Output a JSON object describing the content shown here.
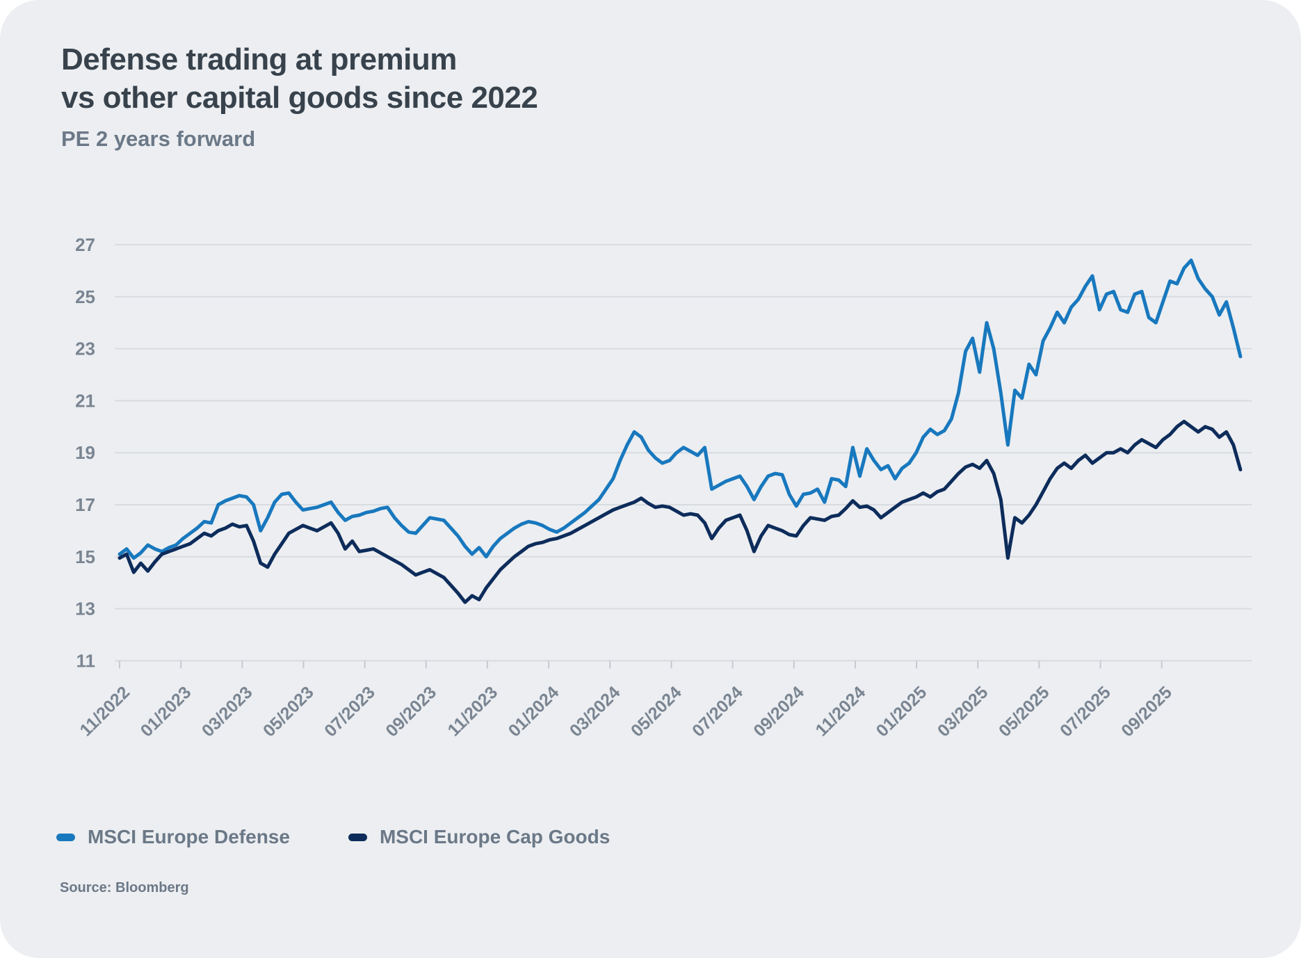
{
  "card": {
    "title_line1": "Defense trading at premium",
    "title_line2": "vs other capital goods since 2022",
    "subtitle": "PE 2 years forward",
    "source": "Source: Bloomberg"
  },
  "colors": {
    "background": "#ECEEF1",
    "gridline": "#D8DBDF",
    "axis_tick": "#C5CAD1",
    "axis_label": "#7A8592",
    "title": "#37424C",
    "muted_text": "#6B7887",
    "defense_line": "#1878BE",
    "cap_goods_line": "#0D2C5B"
  },
  "legend": {
    "items": [
      {
        "label": "MSCI Europe Defense"
      },
      {
        "label": "MSCI Europe Cap Goods"
      }
    ]
  },
  "chart_data": {
    "type": "line",
    "title": "Defense trading at premium vs other capital goods since 2022",
    "subtitle": "PE 2 years forward",
    "xlabel": "",
    "ylabel": "PE 2 years forward",
    "ylim": [
      11,
      27
    ],
    "y_ticks": [
      27,
      25,
      23,
      21,
      19,
      17,
      15,
      13,
      11
    ],
    "x_tick_labels": [
      "11/2022",
      "01/2023",
      "03/2023",
      "05/2023",
      "07/2023",
      "09/2023",
      "11/2023",
      "01/2024",
      "03/2024",
      "05/2024",
      "07/2024",
      "09/2024",
      "11/2024",
      "01/2025",
      "03/2025",
      "05/2025",
      "07/2025",
      "09/2025"
    ],
    "x_sampling": "weekly points from 11/2022 to 11/2025, evenly spaced",
    "grid": "horizontal only",
    "legend_position": "bottom-left",
    "series": [
      {
        "name": "MSCI Europe Defense",
        "color": "#1878BE",
        "values": [
          15.1,
          15.3,
          14.95,
          15.15,
          15.45,
          15.3,
          15.2,
          15.35,
          15.45,
          15.7,
          15.9,
          16.1,
          16.35,
          16.3,
          17.0,
          17.15,
          17.25,
          17.35,
          17.3,
          17.0,
          16.0,
          16.5,
          17.1,
          17.4,
          17.45,
          17.1,
          16.8,
          16.85,
          16.9,
          17.0,
          17.1,
          16.7,
          16.4,
          16.55,
          16.6,
          16.7,
          16.75,
          16.85,
          16.9,
          16.5,
          16.2,
          15.95,
          15.9,
          16.2,
          16.5,
          16.45,
          16.4,
          16.1,
          15.8,
          15.4,
          15.1,
          15.35,
          15.0,
          15.4,
          15.7,
          15.9,
          16.1,
          16.25,
          16.35,
          16.3,
          16.2,
          16.05,
          15.95,
          16.1,
          16.3,
          16.5,
          16.7,
          16.95,
          17.2,
          17.6,
          18.0,
          18.7,
          19.3,
          19.8,
          19.6,
          19.1,
          18.8,
          18.6,
          18.7,
          19.0,
          19.2,
          19.05,
          18.9,
          19.2,
          17.6,
          17.75,
          17.9,
          18.0,
          18.1,
          17.7,
          17.2,
          17.7,
          18.1,
          18.2,
          18.15,
          17.4,
          16.95,
          17.4,
          17.45,
          17.6,
          17.1,
          18.0,
          17.95,
          17.7,
          19.2,
          18.1,
          19.15,
          18.7,
          18.35,
          18.5,
          18.0,
          18.4,
          18.6,
          19.0,
          19.6,
          19.9,
          19.7,
          19.85,
          20.3,
          21.3,
          22.9,
          23.4,
          22.1,
          24.0,
          23.0,
          21.3,
          19.3,
          21.4,
          21.1,
          22.4,
          22.0,
          23.3,
          23.8,
          24.4,
          24.0,
          24.6,
          24.9,
          25.4,
          25.8,
          24.5,
          25.1,
          25.2,
          24.5,
          24.4,
          25.1,
          25.2,
          24.2,
          24.0,
          24.8,
          25.6,
          25.5,
          26.1,
          26.4,
          25.7,
          25.3,
          25.0,
          24.3,
          24.8,
          23.8,
          22.7
        ]
      },
      {
        "name": "MSCI Europe Cap Goods",
        "color": "#0D2C5B",
        "values": [
          14.95,
          15.1,
          14.4,
          14.75,
          14.45,
          14.8,
          15.1,
          15.2,
          15.3,
          15.4,
          15.5,
          15.7,
          15.9,
          15.8,
          16.0,
          16.1,
          16.25,
          16.15,
          16.2,
          15.6,
          14.75,
          14.6,
          15.1,
          15.5,
          15.9,
          16.05,
          16.2,
          16.1,
          16.0,
          16.15,
          16.3,
          15.9,
          15.3,
          15.6,
          15.2,
          15.25,
          15.3,
          15.15,
          15.0,
          14.85,
          14.7,
          14.5,
          14.3,
          14.4,
          14.5,
          14.35,
          14.2,
          13.9,
          13.6,
          13.25,
          13.5,
          13.35,
          13.8,
          14.15,
          14.5,
          14.75,
          15.0,
          15.2,
          15.4,
          15.5,
          15.55,
          15.65,
          15.7,
          15.8,
          15.9,
          16.05,
          16.2,
          16.35,
          16.5,
          16.65,
          16.8,
          16.9,
          17.0,
          17.1,
          17.25,
          17.05,
          16.9,
          16.95,
          16.9,
          16.75,
          16.6,
          16.65,
          16.6,
          16.3,
          15.7,
          16.1,
          16.4,
          16.5,
          16.6,
          16.0,
          15.2,
          15.8,
          16.2,
          16.1,
          16.0,
          15.85,
          15.8,
          16.2,
          16.5,
          16.45,
          16.4,
          16.55,
          16.6,
          16.85,
          17.15,
          16.9,
          16.95,
          16.8,
          16.5,
          16.7,
          16.9,
          17.1,
          17.2,
          17.3,
          17.45,
          17.3,
          17.5,
          17.6,
          17.9,
          18.2,
          18.45,
          18.55,
          18.4,
          18.7,
          18.2,
          17.2,
          14.95,
          16.5,
          16.3,
          16.6,
          17.0,
          17.5,
          18.0,
          18.4,
          18.6,
          18.4,
          18.7,
          18.9,
          18.6,
          18.8,
          19.0,
          19.0,
          19.15,
          19.0,
          19.3,
          19.5,
          19.35,
          19.2,
          19.5,
          19.7,
          20.0,
          20.2,
          20.0,
          19.8,
          20.0,
          19.9,
          19.6,
          19.8,
          19.3,
          18.35
        ]
      }
    ]
  }
}
